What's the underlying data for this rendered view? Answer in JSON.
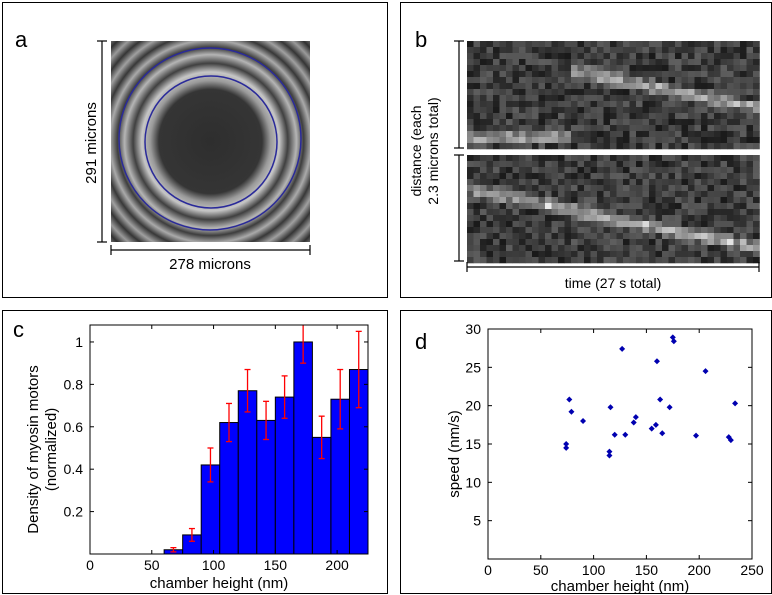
{
  "panels": {
    "a": {
      "label": "a",
      "height_label": "291 microns",
      "width_label": "278 microns"
    },
    "b": {
      "label": "b",
      "ylabel_line1": "distance (each",
      "ylabel_line2": "2.3 microns total)",
      "xlabel": "time (27 s total)"
    },
    "c": {
      "label": "c"
    },
    "d": {
      "label": "d"
    }
  },
  "chart_data": [
    {
      "panel": "c",
      "type": "bar",
      "xlabel": "chamber height (nm)",
      "ylabel": "Density of myosin motors",
      "ylabel2": "(normalized)",
      "xlim": [
        0,
        225
      ],
      "ylim": [
        0,
        1.08
      ],
      "xticks": [
        0,
        50,
        100,
        150,
        200
      ],
      "yticks": [
        0.2,
        0.4,
        0.6,
        0.8,
        1
      ],
      "bin_width": 15,
      "bin_centers": [
        37.5,
        52.5,
        67.5,
        82.5,
        97.5,
        112.5,
        127.5,
        142.5,
        157.5,
        172.5,
        187.5,
        202.5,
        217.5
      ],
      "values": [
        0,
        0,
        0.02,
        0.09,
        0.42,
        0.62,
        0.77,
        0.63,
        0.74,
        1.0,
        0.55,
        0.73,
        0.87
      ],
      "errors": [
        0,
        0,
        0.01,
        0.03,
        0.08,
        0.09,
        0.1,
        0.09,
        0.1,
        0.1,
        0.1,
        0.14,
        0.18
      ],
      "bar_color": "#0000ff",
      "error_color": "#ff0000"
    },
    {
      "panel": "d",
      "type": "scatter",
      "xlabel": "chamber height (nm)",
      "ylabel": "speed (nm/s)",
      "xlim": [
        0,
        250
      ],
      "ylim": [
        0,
        30
      ],
      "xticks": [
        0,
        50,
        100,
        150,
        200,
        250
      ],
      "yticks": [
        5,
        10,
        15,
        20,
        25,
        30
      ],
      "points": [
        [
          74,
          14.5
        ],
        [
          74,
          15.0
        ],
        [
          77,
          20.8
        ],
        [
          79,
          19.2
        ],
        [
          90,
          18.0
        ],
        [
          115,
          14.0
        ],
        [
          115,
          13.5
        ],
        [
          116,
          19.8
        ],
        [
          120,
          16.2
        ],
        [
          127,
          27.4
        ],
        [
          130,
          16.2
        ],
        [
          138,
          17.8
        ],
        [
          140,
          18.5
        ],
        [
          155,
          17.0
        ],
        [
          159,
          17.5
        ],
        [
          160,
          25.8
        ],
        [
          163,
          20.8
        ],
        [
          165,
          16.4
        ],
        [
          172,
          19.8
        ],
        [
          175,
          28.9
        ],
        [
          176,
          28.4
        ],
        [
          197,
          16.1
        ],
        [
          206,
          24.5
        ],
        [
          228,
          15.9
        ],
        [
          230,
          15.5
        ],
        [
          234,
          20.3
        ]
      ],
      "marker_color": "#0000b0"
    }
  ]
}
